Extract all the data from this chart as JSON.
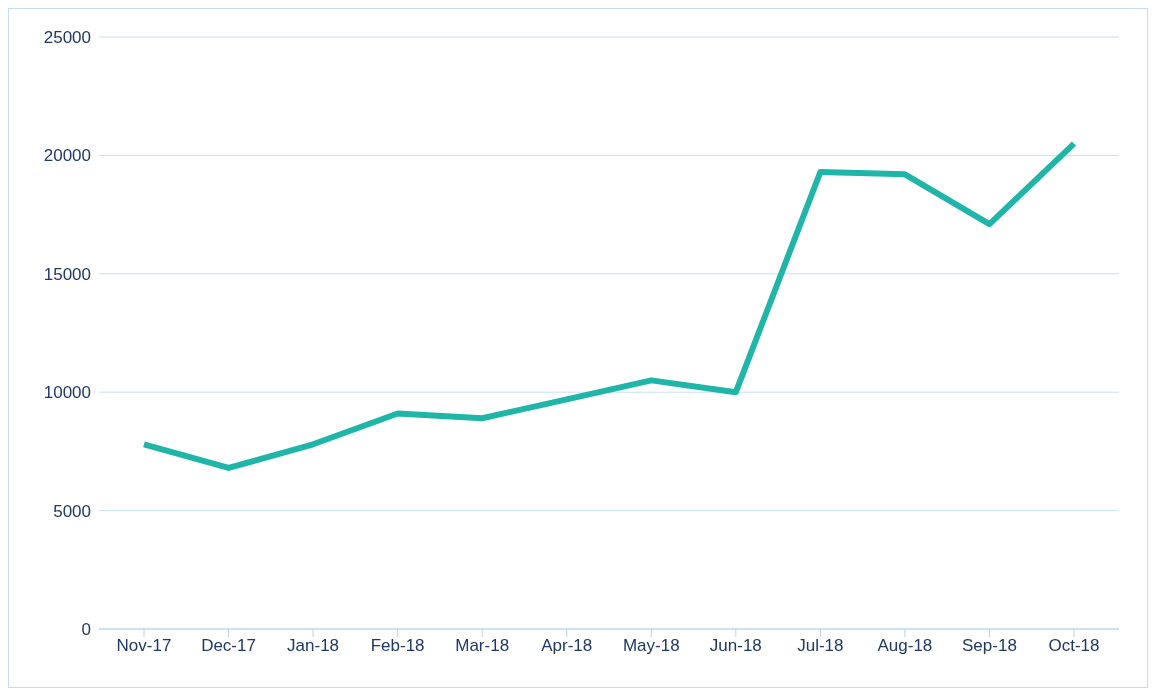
{
  "chart_data": {
    "type": "line",
    "categories": [
      "Nov-17",
      "Dec-17",
      "Jan-18",
      "Feb-18",
      "Mar-18",
      "Apr-18",
      "May-18",
      "Jun-18",
      "Jul-18",
      "Aug-18",
      "Sep-18",
      "Oct-18"
    ],
    "series": [
      {
        "color": "#1fb5a8",
        "values": [
          7800,
          6800,
          7800,
          9100,
          8900,
          9700,
          10500,
          10000,
          19300,
          19200,
          17100,
          20500
        ]
      }
    ],
    "ylim": [
      0,
      25000
    ],
    "yticks": [
      0,
      5000,
      10000,
      15000,
      20000,
      25000
    ],
    "grid": "y",
    "marker": "none",
    "line_style": "solid",
    "legend": false
  }
}
